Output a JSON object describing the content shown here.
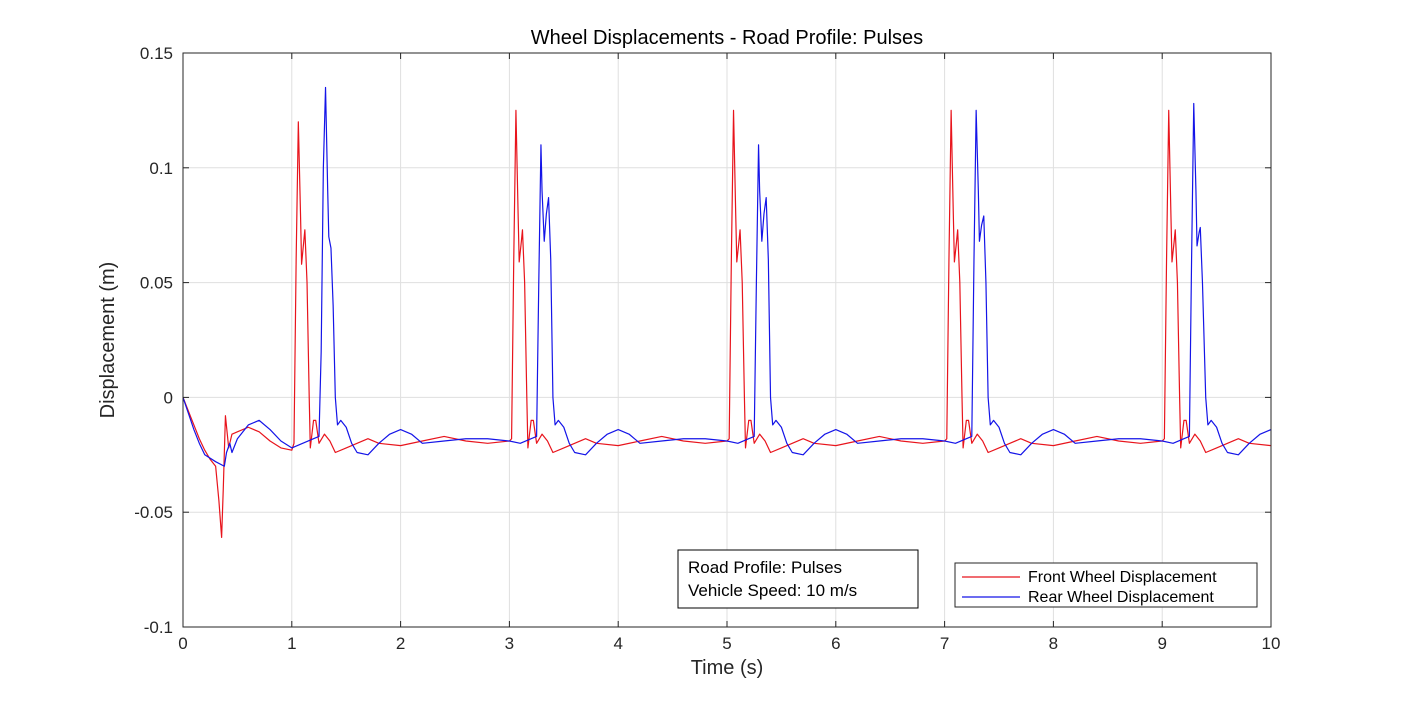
{
  "chart_data": {
    "type": "line",
    "title": "Wheel Displacements - Road Profile: Pulses",
    "xlabel": "Time (s)",
    "ylabel": "Displacement (m)",
    "xlim": [
      0,
      10
    ],
    "ylim": [
      -0.1,
      0.15
    ],
    "xticks": [
      "0",
      "1",
      "2",
      "3",
      "4",
      "5",
      "6",
      "7",
      "8",
      "9",
      "10"
    ],
    "yticks": [
      "-0.1",
      "-0.05",
      "0",
      "0.05",
      "0.1",
      "0.15"
    ],
    "grid": true,
    "legend_position": "bottom-right",
    "annotation": [
      "Road Profile: Pulses",
      "Vehicle Speed: 10 m/s"
    ],
    "series": [
      {
        "name": "Front Wheel Displacement",
        "color": "#e8141c",
        "points": [
          [
            0,
            0
          ],
          [
            0.05,
            -0.006
          ],
          [
            0.1,
            -0.012
          ],
          [
            0.15,
            -0.018
          ],
          [
            0.2,
            -0.023
          ],
          [
            0.25,
            -0.027
          ],
          [
            0.3,
            -0.03
          ],
          [
            0.33,
            -0.045
          ],
          [
            0.355,
            -0.061
          ],
          [
            0.37,
            -0.04
          ],
          [
            0.39,
            -0.008
          ],
          [
            0.42,
            -0.022
          ],
          [
            0.45,
            -0.016
          ],
          [
            0.5,
            -0.015
          ],
          [
            0.6,
            -0.013
          ],
          [
            0.7,
            -0.015
          ],
          [
            0.8,
            -0.019
          ],
          [
            0.9,
            -0.022
          ],
          [
            1.0,
            -0.023
          ],
          [
            1.02,
            -0.02
          ],
          [
            1.04,
            0.06
          ],
          [
            1.06,
            0.12
          ],
          [
            1.08,
            0.08
          ],
          [
            1.09,
            0.058
          ],
          [
            1.11,
            0.068
          ],
          [
            1.12,
            0.073
          ],
          [
            1.14,
            0.05
          ],
          [
            1.16,
            0.0
          ],
          [
            1.17,
            -0.022
          ],
          [
            1.2,
            -0.01
          ],
          [
            1.22,
            -0.01
          ],
          [
            1.25,
            -0.02
          ],
          [
            1.3,
            -0.016
          ],
          [
            1.35,
            -0.019
          ],
          [
            1.4,
            -0.024
          ],
          [
            1.5,
            -0.022
          ],
          [
            1.6,
            -0.02
          ],
          [
            1.7,
            -0.018
          ],
          [
            1.8,
            -0.02
          ],
          [
            2.0,
            -0.021
          ],
          [
            2.2,
            -0.019
          ],
          [
            2.4,
            -0.017
          ],
          [
            2.6,
            -0.019
          ],
          [
            2.8,
            -0.02
          ],
          [
            3.0,
            -0.019
          ],
          [
            3.02,
            -0.018
          ],
          [
            3.04,
            0.06
          ],
          [
            3.06,
            0.125
          ],
          [
            3.08,
            0.08
          ],
          [
            3.09,
            0.059
          ],
          [
            3.11,
            0.068
          ],
          [
            3.12,
            0.073
          ],
          [
            3.14,
            0.05
          ],
          [
            3.16,
            0.0
          ],
          [
            3.17,
            -0.022
          ],
          [
            3.2,
            -0.01
          ],
          [
            3.22,
            -0.01
          ],
          [
            3.25,
            -0.02
          ],
          [
            3.3,
            -0.016
          ],
          [
            3.35,
            -0.019
          ],
          [
            3.4,
            -0.024
          ],
          [
            3.5,
            -0.022
          ],
          [
            3.6,
            -0.02
          ],
          [
            3.7,
            -0.018
          ],
          [
            3.8,
            -0.02
          ],
          [
            4.0,
            -0.021
          ],
          [
            4.2,
            -0.019
          ],
          [
            4.4,
            -0.017
          ],
          [
            4.6,
            -0.019
          ],
          [
            4.8,
            -0.02
          ],
          [
            5.0,
            -0.019
          ],
          [
            5.02,
            -0.018
          ],
          [
            5.04,
            0.06
          ],
          [
            5.06,
            0.125
          ],
          [
            5.08,
            0.08
          ],
          [
            5.09,
            0.059
          ],
          [
            5.11,
            0.068
          ],
          [
            5.12,
            0.073
          ],
          [
            5.14,
            0.05
          ],
          [
            5.16,
            0.0
          ],
          [
            5.17,
            -0.022
          ],
          [
            5.2,
            -0.01
          ],
          [
            5.22,
            -0.01
          ],
          [
            5.25,
            -0.02
          ],
          [
            5.3,
            -0.016
          ],
          [
            5.35,
            -0.019
          ],
          [
            5.4,
            -0.024
          ],
          [
            5.5,
            -0.022
          ],
          [
            5.6,
            -0.02
          ],
          [
            5.7,
            -0.018
          ],
          [
            5.8,
            -0.02
          ],
          [
            6.0,
            -0.021
          ],
          [
            6.2,
            -0.019
          ],
          [
            6.4,
            -0.017
          ],
          [
            6.6,
            -0.019
          ],
          [
            6.8,
            -0.02
          ],
          [
            7.0,
            -0.019
          ],
          [
            7.02,
            -0.018
          ],
          [
            7.04,
            0.06
          ],
          [
            7.06,
            0.125
          ],
          [
            7.08,
            0.08
          ],
          [
            7.09,
            0.059
          ],
          [
            7.11,
            0.068
          ],
          [
            7.12,
            0.073
          ],
          [
            7.14,
            0.05
          ],
          [
            7.16,
            0.0
          ],
          [
            7.17,
            -0.022
          ],
          [
            7.2,
            -0.01
          ],
          [
            7.22,
            -0.01
          ],
          [
            7.25,
            -0.02
          ],
          [
            7.3,
            -0.016
          ],
          [
            7.35,
            -0.019
          ],
          [
            7.4,
            -0.024
          ],
          [
            7.5,
            -0.022
          ],
          [
            7.6,
            -0.02
          ],
          [
            7.7,
            -0.018
          ],
          [
            7.8,
            -0.02
          ],
          [
            8.0,
            -0.021
          ],
          [
            8.2,
            -0.019
          ],
          [
            8.4,
            -0.017
          ],
          [
            8.6,
            -0.019
          ],
          [
            8.8,
            -0.02
          ],
          [
            9.0,
            -0.019
          ],
          [
            9.02,
            -0.018
          ],
          [
            9.04,
            0.06
          ],
          [
            9.06,
            0.125
          ],
          [
            9.08,
            0.08
          ],
          [
            9.09,
            0.059
          ],
          [
            9.11,
            0.068
          ],
          [
            9.12,
            0.073
          ],
          [
            9.14,
            0.05
          ],
          [
            9.16,
            0.0
          ],
          [
            9.17,
            -0.022
          ],
          [
            9.2,
            -0.01
          ],
          [
            9.22,
            -0.01
          ],
          [
            9.25,
            -0.02
          ],
          [
            9.3,
            -0.016
          ],
          [
            9.35,
            -0.019
          ],
          [
            9.4,
            -0.024
          ],
          [
            9.5,
            -0.022
          ],
          [
            9.6,
            -0.02
          ],
          [
            9.7,
            -0.018
          ],
          [
            9.8,
            -0.02
          ],
          [
            10.0,
            -0.021
          ]
        ]
      },
      {
        "name": "Rear Wheel Displacement",
        "color": "#1414e8",
        "points": [
          [
            0,
            0
          ],
          [
            0.05,
            -0.007
          ],
          [
            0.1,
            -0.014
          ],
          [
            0.15,
            -0.02
          ],
          [
            0.2,
            -0.025
          ],
          [
            0.3,
            -0.028
          ],
          [
            0.38,
            -0.03
          ],
          [
            0.4,
            -0.024
          ],
          [
            0.43,
            -0.02
          ],
          [
            0.45,
            -0.024
          ],
          [
            0.5,
            -0.018
          ],
          [
            0.6,
            -0.012
          ],
          [
            0.7,
            -0.01
          ],
          [
            0.8,
            -0.014
          ],
          [
            0.9,
            -0.019
          ],
          [
            1.0,
            -0.022
          ],
          [
            1.1,
            -0.02
          ],
          [
            1.2,
            -0.018
          ],
          [
            1.25,
            -0.017
          ],
          [
            1.27,
            0.02
          ],
          [
            1.29,
            0.1
          ],
          [
            1.31,
            0.135
          ],
          [
            1.33,
            0.09
          ],
          [
            1.34,
            0.07
          ],
          [
            1.36,
            0.065
          ],
          [
            1.38,
            0.04
          ],
          [
            1.4,
            0.0
          ],
          [
            1.42,
            -0.012
          ],
          [
            1.45,
            -0.01
          ],
          [
            1.5,
            -0.013
          ],
          [
            1.55,
            -0.02
          ],
          [
            1.6,
            -0.024
          ],
          [
            1.7,
            -0.025
          ],
          [
            1.8,
            -0.02
          ],
          [
            1.9,
            -0.016
          ],
          [
            2.0,
            -0.014
          ],
          [
            2.1,
            -0.016
          ],
          [
            2.2,
            -0.02
          ],
          [
            2.4,
            -0.019
          ],
          [
            2.6,
            -0.018
          ],
          [
            2.8,
            -0.018
          ],
          [
            3.0,
            -0.019
          ],
          [
            3.1,
            -0.02
          ],
          [
            3.2,
            -0.018
          ],
          [
            3.25,
            -0.017
          ],
          [
            3.27,
            0.05
          ],
          [
            3.29,
            0.11
          ],
          [
            3.3,
            0.09
          ],
          [
            3.32,
            0.068
          ],
          [
            3.34,
            0.08
          ],
          [
            3.36,
            0.087
          ],
          [
            3.38,
            0.06
          ],
          [
            3.4,
            0.0
          ],
          [
            3.42,
            -0.012
          ],
          [
            3.45,
            -0.01
          ],
          [
            3.5,
            -0.013
          ],
          [
            3.55,
            -0.02
          ],
          [
            3.6,
            -0.024
          ],
          [
            3.7,
            -0.025
          ],
          [
            3.8,
            -0.02
          ],
          [
            3.9,
            -0.016
          ],
          [
            4.0,
            -0.014
          ],
          [
            4.1,
            -0.016
          ],
          [
            4.2,
            -0.02
          ],
          [
            4.4,
            -0.019
          ],
          [
            4.6,
            -0.018
          ],
          [
            4.8,
            -0.018
          ],
          [
            5.0,
            -0.019
          ],
          [
            5.1,
            -0.02
          ],
          [
            5.2,
            -0.018
          ],
          [
            5.25,
            -0.017
          ],
          [
            5.27,
            0.05
          ],
          [
            5.29,
            0.11
          ],
          [
            5.3,
            0.09
          ],
          [
            5.32,
            0.068
          ],
          [
            5.34,
            0.08
          ],
          [
            5.36,
            0.087
          ],
          [
            5.38,
            0.06
          ],
          [
            5.4,
            0.0
          ],
          [
            5.42,
            -0.012
          ],
          [
            5.45,
            -0.01
          ],
          [
            5.5,
            -0.013
          ],
          [
            5.55,
            -0.02
          ],
          [
            5.6,
            -0.024
          ],
          [
            5.7,
            -0.025
          ],
          [
            5.8,
            -0.02
          ],
          [
            5.9,
            -0.016
          ],
          [
            6.0,
            -0.014
          ],
          [
            6.1,
            -0.016
          ],
          [
            6.2,
            -0.02
          ],
          [
            6.4,
            -0.019
          ],
          [
            6.6,
            -0.018
          ],
          [
            6.8,
            -0.018
          ],
          [
            7.0,
            -0.019
          ],
          [
            7.1,
            -0.02
          ],
          [
            7.2,
            -0.018
          ],
          [
            7.25,
            -0.017
          ],
          [
            7.27,
            0.06
          ],
          [
            7.29,
            0.125
          ],
          [
            7.31,
            0.09
          ],
          [
            7.32,
            0.068
          ],
          [
            7.34,
            0.075
          ],
          [
            7.36,
            0.079
          ],
          [
            7.38,
            0.05
          ],
          [
            7.4,
            0.0
          ],
          [
            7.42,
            -0.012
          ],
          [
            7.45,
            -0.01
          ],
          [
            7.5,
            -0.013
          ],
          [
            7.55,
            -0.02
          ],
          [
            7.6,
            -0.024
          ],
          [
            7.7,
            -0.025
          ],
          [
            7.8,
            -0.02
          ],
          [
            7.9,
            -0.016
          ],
          [
            8.0,
            -0.014
          ],
          [
            8.1,
            -0.016
          ],
          [
            8.2,
            -0.02
          ],
          [
            8.4,
            -0.019
          ],
          [
            8.6,
            -0.018
          ],
          [
            8.8,
            -0.018
          ],
          [
            9.0,
            -0.019
          ],
          [
            9.1,
            -0.02
          ],
          [
            9.2,
            -0.018
          ],
          [
            9.25,
            -0.017
          ],
          [
            9.27,
            0.06
          ],
          [
            9.29,
            0.128
          ],
          [
            9.31,
            0.09
          ],
          [
            9.32,
            0.066
          ],
          [
            9.34,
            0.072
          ],
          [
            9.35,
            0.074
          ],
          [
            9.37,
            0.05
          ],
          [
            9.4,
            0.0
          ],
          [
            9.42,
            -0.012
          ],
          [
            9.45,
            -0.01
          ],
          [
            9.5,
            -0.013
          ],
          [
            9.55,
            -0.02
          ],
          [
            9.6,
            -0.024
          ],
          [
            9.7,
            -0.025
          ],
          [
            9.8,
            -0.02
          ],
          [
            9.9,
            -0.016
          ],
          [
            10.0,
            -0.014
          ]
        ]
      }
    ]
  }
}
